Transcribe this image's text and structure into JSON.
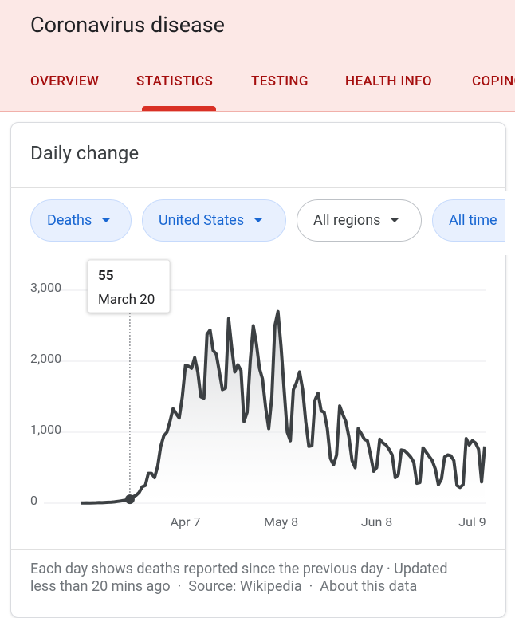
{
  "header": {
    "title": "Coronavirus disease"
  },
  "tabs": [
    "OVERVIEW",
    "STATISTICS",
    "TESTING",
    "HEALTH INFO",
    "COPING"
  ],
  "card": {
    "title": "Daily change",
    "filters": [
      "Deaths",
      "United States",
      "All regions",
      "All time"
    ]
  },
  "chart_data": {
    "type": "line",
    "categories": [
      "Mar 4",
      "Mar 5",
      "Mar 6",
      "Mar 7",
      "Mar 8",
      "Mar 9",
      "Mar 10",
      "Mar 11",
      "Mar 12",
      "Mar 13",
      "Mar 14",
      "Mar 15",
      "Mar 16",
      "Mar 17",
      "Mar 18",
      "Mar 19",
      "Mar 20",
      "Mar 21",
      "Mar 22",
      "Mar 23",
      "Mar 24",
      "Mar 25",
      "Mar 26",
      "Mar 27",
      "Mar 28",
      "Mar 29",
      "Mar 30",
      "Mar 31",
      "Apr 1",
      "Apr 2",
      "Apr 3",
      "Apr 4",
      "Apr 5",
      "Apr 6",
      "Apr 7",
      "Apr 8",
      "Apr 9",
      "Apr 10",
      "Apr 11",
      "Apr 12",
      "Apr 13",
      "Apr 14",
      "Apr 15",
      "Apr 16",
      "Apr 17",
      "Apr 18",
      "Apr 19",
      "Apr 20",
      "Apr 21",
      "Apr 22",
      "Apr 23",
      "Apr 24",
      "Apr 25",
      "Apr 26",
      "Apr 27",
      "Apr 28",
      "Apr 29",
      "Apr 30",
      "May 1",
      "May 2",
      "May 3",
      "May 4",
      "May 5",
      "May 6",
      "May 7",
      "May 8",
      "May 9",
      "May 10",
      "May 11",
      "May 12",
      "May 13",
      "May 14",
      "May 15",
      "May 16",
      "May 17",
      "May 18",
      "May 19",
      "May 20",
      "May 21",
      "May 22",
      "May 23",
      "May 24",
      "May 25",
      "May 26",
      "May 27",
      "May 28",
      "May 29",
      "May 30",
      "May 31",
      "Jun 1",
      "Jun 2",
      "Jun 3",
      "Jun 4",
      "Jun 5",
      "Jun 6",
      "Jun 7",
      "Jun 8",
      "Jun 9",
      "Jun 10",
      "Jun 11",
      "Jun 12",
      "Jun 13",
      "Jun 14",
      "Jun 15",
      "Jun 16",
      "Jun 17",
      "Jun 18",
      "Jun 19",
      "Jun 20",
      "Jun 21",
      "Jun 22",
      "Jun 23",
      "Jun 24",
      "Jun 25",
      "Jun 26",
      "Jun 27",
      "Jun 28",
      "Jun 29",
      "Jun 30",
      "Jul 1",
      "Jul 2",
      "Jul 3",
      "Jul 4",
      "Jul 5",
      "Jul 6",
      "Jul 7",
      "Jul 8",
      "Jul 9",
      "Jul 10",
      "Jul 11",
      "Jul 12",
      "Jul 13"
    ],
    "values": [
      2,
      3,
      4,
      3,
      5,
      6,
      8,
      7,
      10,
      12,
      14,
      18,
      25,
      30,
      38,
      45,
      55,
      90,
      110,
      150,
      230,
      250,
      420,
      420,
      360,
      520,
      800,
      950,
      1000,
      1150,
      1330,
      1260,
      1200,
      1500,
      1940,
      1930,
      1900,
      2050,
      1850,
      1500,
      1480,
      2380,
      2440,
      2150,
      2100,
      1850,
      1600,
      1620,
      2600,
      2200,
      1850,
      1950,
      1870,
      1150,
      1280,
      2000,
      2500,
      2250,
      1900,
      1750,
      1350,
      1050,
      1500,
      2500,
      2700,
      2200,
      1600,
      1000,
      880,
      1600,
      1700,
      1850,
      1600,
      1150,
      800,
      810,
      1450,
      1550,
      1300,
      1280,
      1050,
      630,
      540,
      680,
      1370,
      1250,
      1150,
      930,
      600,
      500,
      1050,
      980,
      900,
      880,
      680,
      450,
      500,
      900,
      850,
      820,
      760,
      680,
      360,
      400,
      750,
      740,
      700,
      650,
      580,
      280,
      290,
      780,
      720,
      660,
      600,
      480,
      260,
      340,
      650,
      680,
      670,
      600,
      250,
      220,
      260,
      910,
      820,
      880,
      850,
      760,
      300,
      800
    ],
    "color": "#3c4043",
    "ylim": [
      0,
      3000
    ],
    "yticks": [
      0,
      {
        "value": 1000,
        "label": "1,000"
      },
      {
        "value": 2000,
        "label": "2,000"
      },
      {
        "value": 3000,
        "label": "3,000"
      }
    ],
    "xticks": [
      "Apr 7",
      "May 8",
      "Jun 8",
      "Jul 9"
    ],
    "grid": true,
    "tooltip": {
      "value": 55,
      "date": "March 20",
      "index": 16
    }
  },
  "footer": {
    "line1": "Each day shows deaths reported since the previous day · Updated",
    "line2": "less than 20 mins ago",
    "separator": "·",
    "source": "Source:",
    "links": [
      "Wikipedia",
      "About this data"
    ]
  }
}
